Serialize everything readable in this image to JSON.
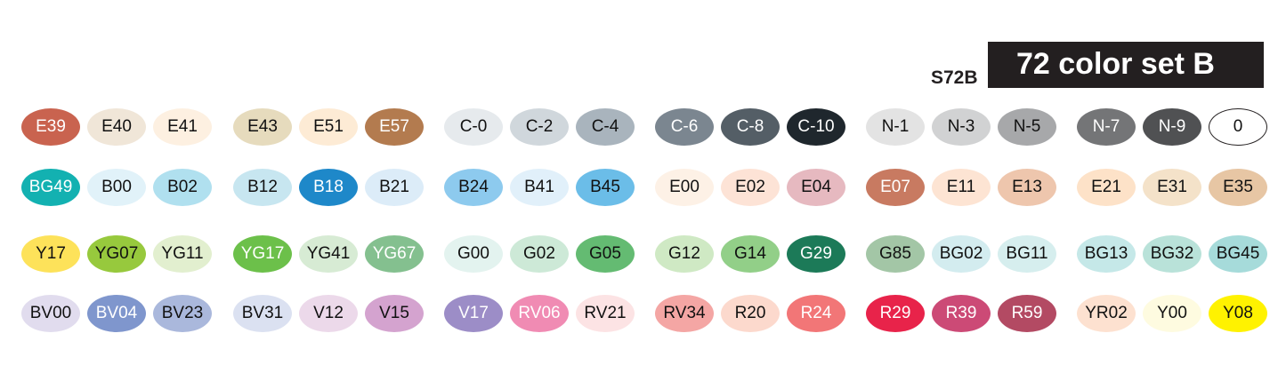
{
  "header": {
    "code": "S72B",
    "title": "72 color set B"
  },
  "rows": [
    [
      [
        "E39",
        "#c9634f",
        "#fff"
      ],
      [
        "E40",
        "#f0e6d8",
        "#111"
      ],
      [
        "E41",
        "#fdf0e1",
        "#111"
      ],
      [
        "E43",
        "#e6dbbd",
        "#111"
      ],
      [
        "E51",
        "#fdebd5",
        "#111"
      ],
      [
        "E57",
        "#b37b4f",
        "#fff"
      ],
      [
        "C-0",
        "#e6eaed",
        "#111"
      ],
      [
        "C-2",
        "#d0d7dc",
        "#111"
      ],
      [
        "C-4",
        "#a9b4bd",
        "#111"
      ],
      [
        "C-6",
        "#7b8690",
        "#fff"
      ],
      [
        "C-8",
        "#545e66",
        "#fff"
      ],
      [
        "C-10",
        "#1f272d",
        "#fff"
      ],
      [
        "N-1",
        "#e3e3e3",
        "#111"
      ],
      [
        "N-3",
        "#d1d2d3",
        "#111"
      ],
      [
        "N-5",
        "#a7a8aa",
        "#111"
      ],
      [
        "N-7",
        "#747577",
        "#fff"
      ],
      [
        "N-9",
        "#505153",
        "#fff"
      ],
      [
        "0",
        "#ffffff",
        "#111"
      ]
    ],
    [
      [
        "BG49",
        "#13b1b1",
        "#fff"
      ],
      [
        "B00",
        "#e1f2f9",
        "#111"
      ],
      [
        "B02",
        "#b0e0ef",
        "#111"
      ],
      [
        "B12",
        "#c7e6f0",
        "#111"
      ],
      [
        "B18",
        "#1e88c9",
        "#fff"
      ],
      [
        "B21",
        "#dcecf8",
        "#111"
      ],
      [
        "B24",
        "#8dcaee",
        "#111"
      ],
      [
        "B41",
        "#e1f0fa",
        "#111"
      ],
      [
        "B45",
        "#6bbde8",
        "#111"
      ],
      [
        "E00",
        "#fdf1e6",
        "#111"
      ],
      [
        "E02",
        "#fde3d6",
        "#111"
      ],
      [
        "E04",
        "#e6b9c0",
        "#111"
      ],
      [
        "E07",
        "#c87a61",
        "#fff"
      ],
      [
        "E11",
        "#fde4d3",
        "#111"
      ],
      [
        "E13",
        "#eec6ad",
        "#111"
      ],
      [
        "E21",
        "#fde2c8",
        "#111"
      ],
      [
        "E31",
        "#f4e2c9",
        "#111"
      ],
      [
        "E35",
        "#e7c6a4",
        "#111"
      ]
    ],
    [
      [
        "Y17",
        "#fde25a",
        "#111"
      ],
      [
        "YG07",
        "#97c93d",
        "#111"
      ],
      [
        "YG11",
        "#e2efcf",
        "#111"
      ],
      [
        "YG17",
        "#6cc04a",
        "#fff"
      ],
      [
        "YG41",
        "#d7ebd4",
        "#111"
      ],
      [
        "YG67",
        "#84c08f",
        "#fff"
      ],
      [
        "G00",
        "#e3f3ef",
        "#111"
      ],
      [
        "G02",
        "#cde9d7",
        "#111"
      ],
      [
        "G05",
        "#64bb72",
        "#111"
      ],
      [
        "G12",
        "#cfe9c4",
        "#111"
      ],
      [
        "G14",
        "#92cf88",
        "#111"
      ],
      [
        "G29",
        "#1c7a58",
        "#fff"
      ],
      [
        "G85",
        "#a3c6a6",
        "#111"
      ],
      [
        "BG02",
        "#d3ecef",
        "#111"
      ],
      [
        "BG11",
        "#d6eeee",
        "#111"
      ],
      [
        "BG13",
        "#c5e8e8",
        "#111"
      ],
      [
        "BG32",
        "#b9e2d9",
        "#111"
      ],
      [
        "BG45",
        "#a6dbda",
        "#111"
      ]
    ],
    [
      [
        "BV00",
        "#e1dcee",
        "#111"
      ],
      [
        "BV04",
        "#7f96cd",
        "#fff"
      ],
      [
        "BV23",
        "#aab8dc",
        "#111"
      ],
      [
        "BV31",
        "#dbe1f1",
        "#111"
      ],
      [
        "V12",
        "#ecd9ea",
        "#111"
      ],
      [
        "V15",
        "#d4a3cf",
        "#111"
      ],
      [
        "V17",
        "#9c8dc7",
        "#fff"
      ],
      [
        "RV06",
        "#f08bb3",
        "#fff"
      ],
      [
        "RV21",
        "#fce3e4",
        "#111"
      ],
      [
        "RV34",
        "#f4a6a4",
        "#111"
      ],
      [
        "R20",
        "#fcd9cd",
        "#111"
      ],
      [
        "R24",
        "#f27677",
        "#fff"
      ],
      [
        "R29",
        "#e8234a",
        "#fff"
      ],
      [
        "R39",
        "#cc4a76",
        "#fff"
      ],
      [
        "R59",
        "#b34a63",
        "#fff"
      ],
      [
        "YR02",
        "#fde1d0",
        "#111"
      ],
      [
        "Y00",
        "#fefbe0",
        "#111"
      ],
      [
        "Y08",
        "#fff200",
        "#111"
      ]
    ]
  ]
}
